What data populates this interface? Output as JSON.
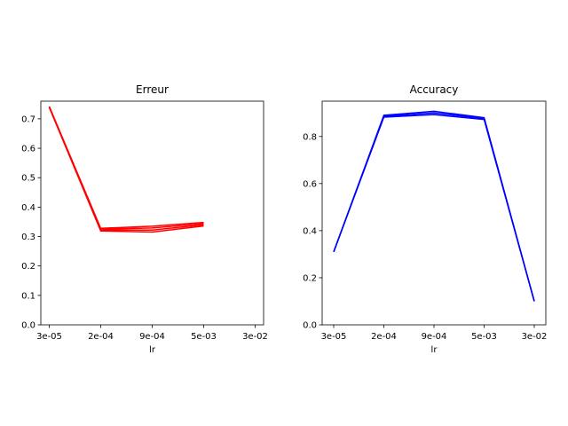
{
  "chart_data": [
    {
      "type": "line",
      "title": "Erreur",
      "xlabel": "lr",
      "ylabel": "",
      "categories": [
        "3e-05",
        "2e-04",
        "9e-04",
        "5e-03",
        "3e-02"
      ],
      "ylim": [
        0,
        0.76
      ],
      "yticks": [
        0.0,
        0.1,
        0.2,
        0.3,
        0.4,
        0.5,
        0.6,
        0.7
      ],
      "ytick_labels": [
        "0.0",
        "0.1",
        "0.2",
        "0.3",
        "0.4",
        "0.5",
        "0.6",
        "0.7"
      ],
      "color": "#ff0000",
      "grid": false,
      "series": [
        {
          "values": [
            0.742,
            0.328,
            0.335,
            0.348,
            null
          ]
        },
        {
          "values": [
            0.741,
            0.325,
            0.329,
            0.344,
            null
          ]
        },
        {
          "values": [
            0.74,
            0.322,
            0.322,
            0.34,
            null
          ]
        },
        {
          "values": [
            0.739,
            0.319,
            0.315,
            0.336,
            null
          ]
        }
      ]
    },
    {
      "type": "line",
      "title": "Accuracy",
      "xlabel": "lr",
      "ylabel": "",
      "categories": [
        "3e-05",
        "2e-04",
        "9e-04",
        "5e-03",
        "3e-02"
      ],
      "ylim": [
        0,
        0.95
      ],
      "yticks": [
        0.0,
        0.2,
        0.4,
        0.6,
        0.8
      ],
      "ytick_labels": [
        "0.0",
        "0.2",
        "0.4",
        "0.6",
        "0.8"
      ],
      "color": "#0000ff",
      "grid": false,
      "series": [
        {
          "values": [
            0.31,
            0.89,
            0.907,
            0.88,
            0.1
          ]
        },
        {
          "values": [
            0.31,
            0.886,
            0.9,
            0.876,
            0.1
          ]
        },
        {
          "values": [
            0.31,
            0.882,
            0.893,
            0.872,
            0.1
          ]
        }
      ]
    }
  ]
}
